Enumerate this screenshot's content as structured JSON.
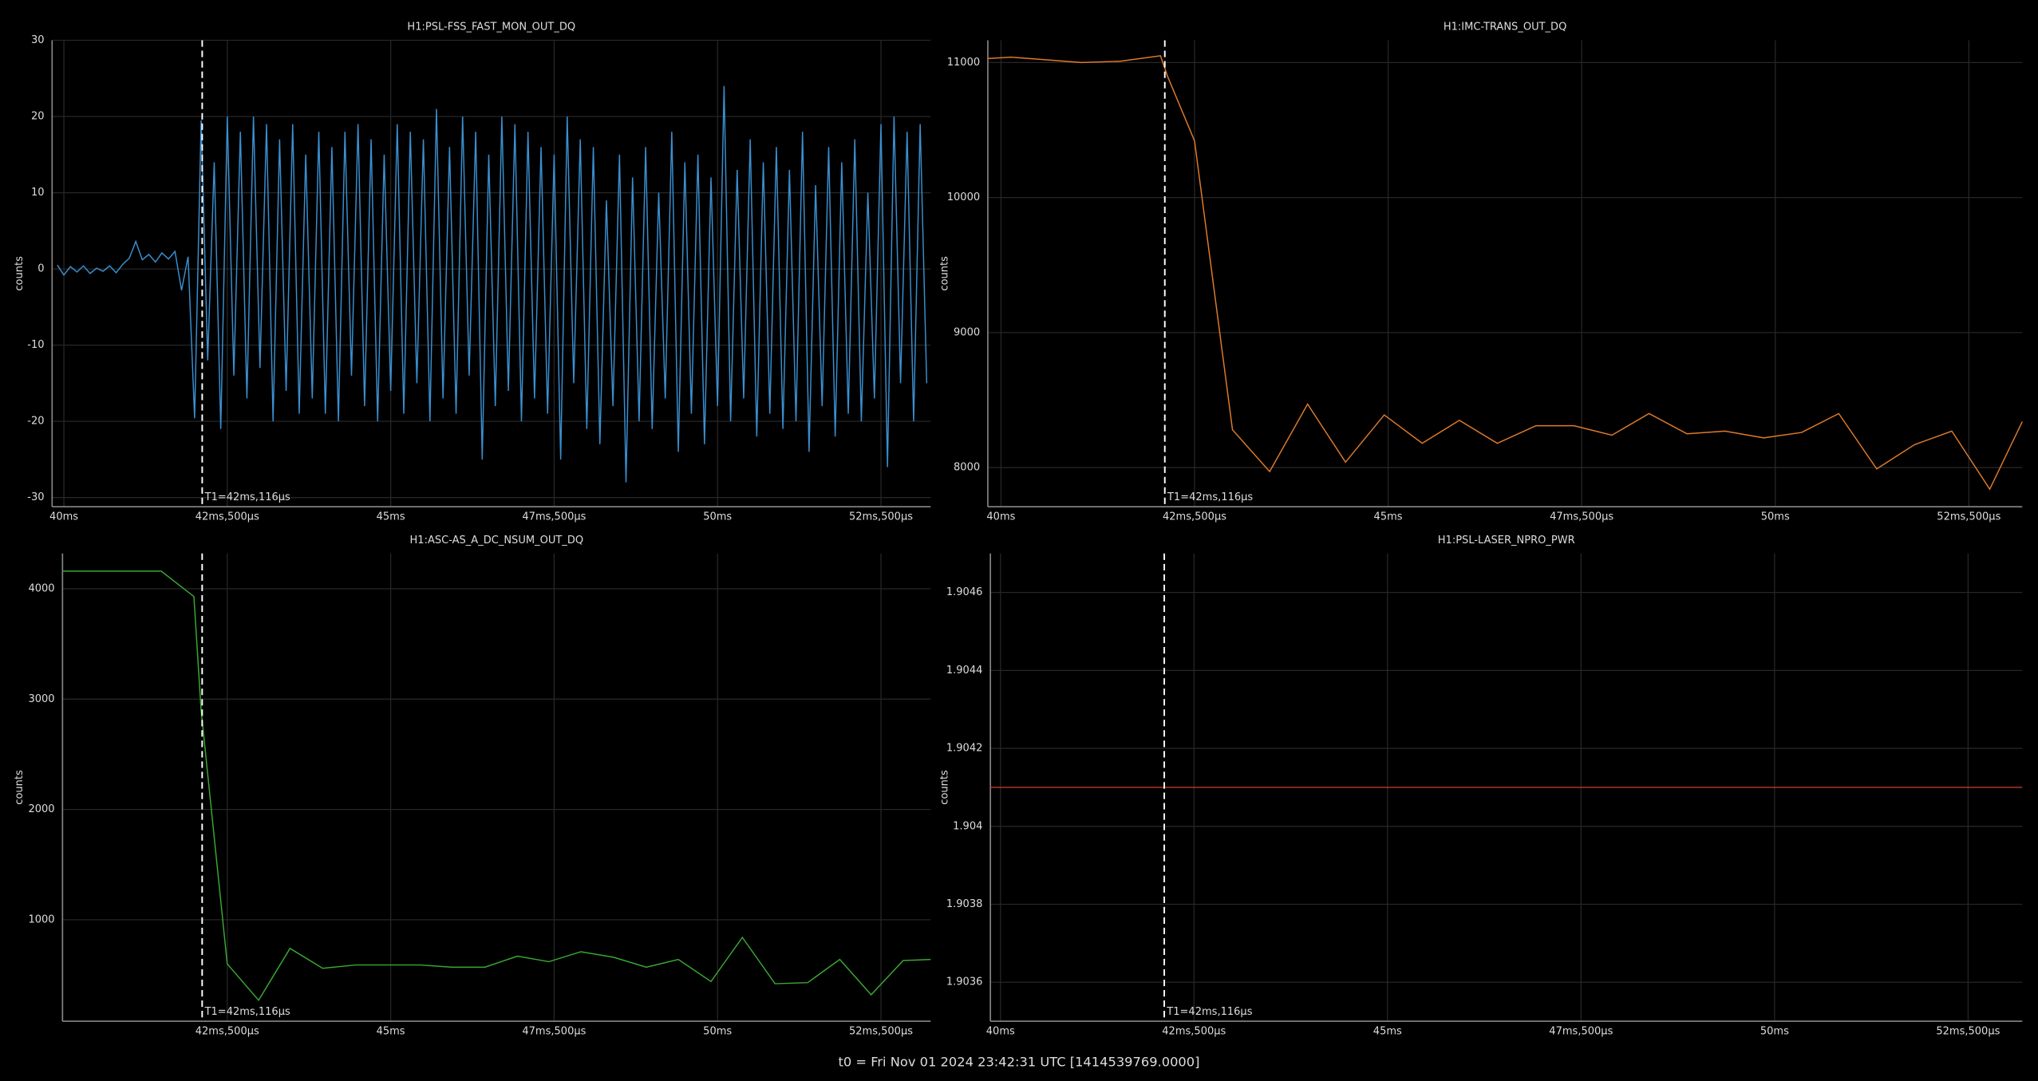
{
  "chart_data": [
    {
      "type": "line",
      "title": "H1:PSL-FSS_FAST_MON_OUT_DQ",
      "ylabel": "counts",
      "color": "#3a8fd0",
      "grid": true,
      "xlim": [
        39.82,
        53.26
      ],
      "ylim": [
        -31.2,
        30
      ],
      "xticks": [
        {
          "value": 40,
          "label": "40ms"
        },
        {
          "value": 42.5,
          "label": "42ms,500µs"
        },
        {
          "value": 45,
          "label": "45ms"
        },
        {
          "value": 47.5,
          "label": "47ms,500µs"
        },
        {
          "value": 50,
          "label": "50ms"
        },
        {
          "value": 52.5,
          "label": "52ms,500µs"
        }
      ],
      "yticks": [
        -30,
        -20,
        -10,
        0,
        10,
        20,
        30
      ],
      "marker": {
        "x": 42.116,
        "label": "T1=42ms,116µs"
      },
      "x": [
        39.9,
        40.0,
        40.1,
        40.2,
        40.3,
        40.4,
        40.5,
        40.6,
        40.7,
        40.8,
        40.9,
        41.0,
        41.1,
        41.2,
        41.3,
        41.4,
        41.5,
        41.6,
        41.7,
        41.8,
        41.9,
        42.0,
        42.1,
        42.2,
        42.3,
        42.4,
        42.5,
        42.6,
        42.7,
        42.8,
        42.9,
        43.0,
        43.1,
        43.2,
        43.3,
        43.4,
        43.5,
        43.6,
        43.7,
        43.8,
        43.9,
        44.0,
        44.1,
        44.2,
        44.3,
        44.4,
        44.5,
        44.6,
        44.7,
        44.8,
        44.9,
        45.0,
        45.1,
        45.2,
        45.3,
        45.4,
        45.5,
        45.6,
        45.7,
        45.8,
        45.9,
        46.0,
        46.1,
        46.2,
        46.3,
        46.4,
        46.5,
        46.6,
        46.7,
        46.8,
        46.9,
        47.0,
        47.1,
        47.2,
        47.3,
        47.4,
        47.5,
        47.6,
        47.7,
        47.8,
        47.9,
        48.0,
        48.1,
        48.2,
        48.3,
        48.4,
        48.5,
        48.6,
        48.7,
        48.8,
        48.9,
        49.0,
        49.1,
        49.2,
        49.3,
        49.4,
        49.5,
        49.6,
        49.7,
        49.8,
        49.9,
        50.0,
        50.1,
        50.2,
        50.3,
        50.4,
        50.5,
        50.6,
        50.7,
        50.8,
        50.9,
        51.0,
        51.1,
        51.2,
        51.3,
        51.4,
        51.5,
        51.6,
        51.7,
        51.8,
        51.9,
        52.0,
        52.1,
        52.2,
        52.3,
        52.4,
        52.5,
        52.6,
        52.7,
        52.8,
        52.9,
        53.0,
        53.1,
        53.2
      ],
      "values": [
        0.5,
        -0.8,
        0.3,
        -0.4,
        0.4,
        -0.6,
        0.1,
        -0.3,
        0.4,
        -0.5,
        0.6,
        1.4,
        3.6,
        1.2,
        1.9,
        0.9,
        2.1,
        1.3,
        2.3,
        -2.8,
        1.6,
        -19.6,
        19.5,
        -12,
        14,
        -21,
        20,
        -14,
        18,
        -17,
        20,
        -13,
        19,
        -20,
        17,
        -16,
        19,
        -19,
        15,
        -17,
        18,
        -19,
        16,
        -20,
        18,
        -14,
        19,
        -18,
        17,
        -20,
        15,
        -16,
        19,
        -19,
        18,
        -15,
        17,
        -20,
        21,
        -17,
        16,
        -19,
        20,
        -14,
        18,
        -25,
        15,
        -18,
        20,
        -16,
        19,
        -20,
        18,
        -17,
        16,
        -19,
        15,
        -25,
        20,
        -15,
        17,
        -21,
        16,
        -23,
        9,
        -18,
        15,
        -28,
        12,
        -20,
        16,
        -21,
        10,
        -17,
        18,
        -24,
        14,
        -19,
        15,
        -23,
        12,
        -18,
        24,
        -20,
        13,
        -17,
        17,
        -22,
        14,
        -19,
        16,
        -21,
        13,
        -20,
        18,
        -24,
        11,
        -18,
        16,
        -22,
        14,
        -19,
        17,
        -20,
        10,
        -17,
        19,
        -26,
        20,
        -15,
        18,
        -20,
        19,
        -15
      ]
    },
    {
      "type": "line",
      "title": "H1:IMC-TRANS_OUT_DQ",
      "ylabel": "counts",
      "color": "#e07b2a",
      "grid": true,
      "xlim": [
        39.83,
        53.19
      ],
      "ylim": [
        7710,
        11165
      ],
      "xticks": [
        {
          "value": 40,
          "label": "40ms"
        },
        {
          "value": 42.5,
          "label": "42ms,500µs"
        },
        {
          "value": 45,
          "label": "45ms"
        },
        {
          "value": 47.5,
          "label": "47ms,500µs"
        },
        {
          "value": 50,
          "label": "50ms"
        },
        {
          "value": 52.5,
          "label": "52ms,500µs"
        }
      ],
      "yticks": [
        8000,
        9000,
        10000,
        11000
      ],
      "marker": {
        "x": 42.116,
        "label": "T1=42ms,116µs"
      },
      "x": [
        39.83,
        40.13,
        40.59,
        41.04,
        41.54,
        42.06,
        42.15,
        42.5,
        42.99,
        43.47,
        43.96,
        44.45,
        44.95,
        45.44,
        45.92,
        46.41,
        46.91,
        47.4,
        47.89,
        48.37,
        48.86,
        49.35,
        49.85,
        50.34,
        50.82,
        51.31,
        51.8,
        52.28,
        52.77,
        53.19
      ],
      "values": [
        11030,
        11040,
        11020,
        11000,
        11010,
        11050,
        10900,
        10420,
        8280,
        7970,
        8470,
        8040,
        8390,
        8180,
        8350,
        8180,
        8310,
        8310,
        8240,
        8400,
        8250,
        8270,
        8220,
        8260,
        8400,
        7990,
        8170,
        8270,
        7840,
        8340
      ]
    },
    {
      "type": "line",
      "title": "H1:ASC-AS_A_DC_NSUM_OUT_DQ",
      "ylabel": "counts",
      "color": "#3aa832",
      "grid": true,
      "xlim": [
        39.98,
        53.26
      ],
      "ylim": [
        80,
        4320
      ],
      "xticks": [
        {
          "value": 42.5,
          "label": "42ms,500µs"
        },
        {
          "value": 45,
          "label": "45ms"
        },
        {
          "value": 47.5,
          "label": "47ms,500µs"
        },
        {
          "value": 50,
          "label": "50ms"
        },
        {
          "value": 52.5,
          "label": "52ms,500µs"
        }
      ],
      "yticks": [
        1000,
        2000,
        3000,
        4000
      ],
      "marker": {
        "x": 42.116,
        "label": "T1=42ms,116µs"
      },
      "x": [
        39.98,
        41.49,
        41.99,
        42.1,
        42.5,
        42.98,
        43.46,
        43.96,
        44.46,
        44.95,
        45.45,
        45.94,
        46.44,
        46.94,
        47.42,
        47.91,
        48.41,
        48.91,
        49.4,
        49.9,
        50.38,
        50.88,
        51.38,
        51.87,
        52.35,
        52.84,
        53.26
      ],
      "values": [
        4160,
        4160,
        3930,
        2900,
        600,
        270,
        740,
        560,
        590,
        590,
        590,
        570,
        570,
        670,
        620,
        710,
        660,
        570,
        640,
        440,
        840,
        420,
        430,
        640,
        320,
        630,
        640
      ]
    },
    {
      "type": "line",
      "title": "H1:PSL-LASER_NPRO_PWR",
      "ylabel": "counts",
      "color": "#c0392b",
      "grid": true,
      "xlim": [
        39.87,
        53.2
      ],
      "ylim": [
        1.9035,
        1.9047
      ],
      "xticks": [
        {
          "value": 40,
          "label": "40ms"
        },
        {
          "value": 42.5,
          "label": "42ms,500µs"
        },
        {
          "value": 45,
          "label": "45ms"
        },
        {
          "value": 47.5,
          "label": "47ms,500µs"
        },
        {
          "value": 50,
          "label": "50ms"
        },
        {
          "value": 52.5,
          "label": "52ms,500µs"
        }
      ],
      "yticks": [
        1.9036,
        1.9038,
        1.904,
        1.9042,
        1.9044,
        1.9046
      ],
      "marker": {
        "x": 42.116,
        "label": "T1=42ms,116µs"
      },
      "x": [
        39.87,
        53.2
      ],
      "values": [
        1.9041,
        1.9041
      ]
    }
  ],
  "footer": "t0 = Fri Nov 01 2024 23:42:31 UTC [1414539769.0000]"
}
